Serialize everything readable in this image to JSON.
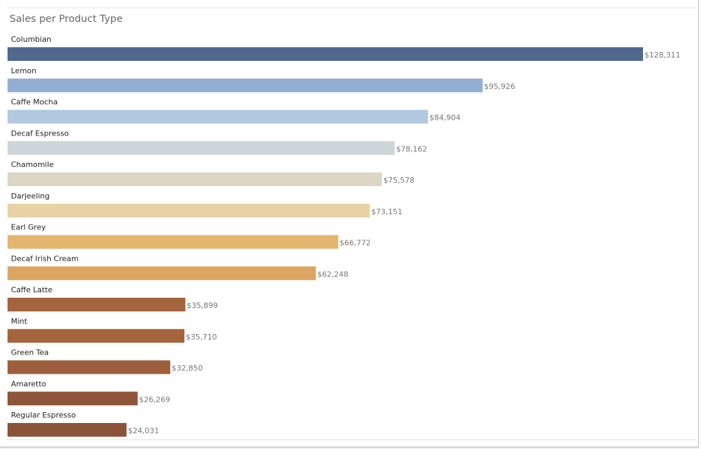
{
  "chart_data": {
    "type": "bar",
    "orientation": "horizontal",
    "title": "Sales per Product Type",
    "categories": [
      "Columbian",
      "Lemon",
      "Caffe Mocha",
      "Decaf Espresso",
      "Chamomile",
      "Darjeeling",
      "Earl Grey",
      "Decaf Irish Cream",
      "Caffe Latte",
      "Mint",
      "Green Tea",
      "Amaretto",
      "Regular Espresso"
    ],
    "values": [
      128311,
      95926,
      84904,
      78162,
      75578,
      73151,
      66772,
      62248,
      35899,
      35710,
      32850,
      26269,
      24031
    ],
    "value_labels": [
      "$128,311",
      "$95,926",
      "$84,904",
      "$78,162",
      "$75,578",
      "$73,151",
      "$66,772",
      "$62,248",
      "$35,899",
      "$35,710",
      "$32,850",
      "$26,269",
      "$24,031"
    ],
    "colors": [
      "#51698f",
      "#93aed3",
      "#b0c9e0",
      "#cdd5d8",
      "#ddd6c4",
      "#e8d1a5",
      "#e2b66f",
      "#dca662",
      "#a4643e",
      "#a4643e",
      "#9c5e3b",
      "#8e553a",
      "#8b543a"
    ],
    "xlim": [
      0,
      128311
    ],
    "grid": false,
    "legend": "none"
  }
}
